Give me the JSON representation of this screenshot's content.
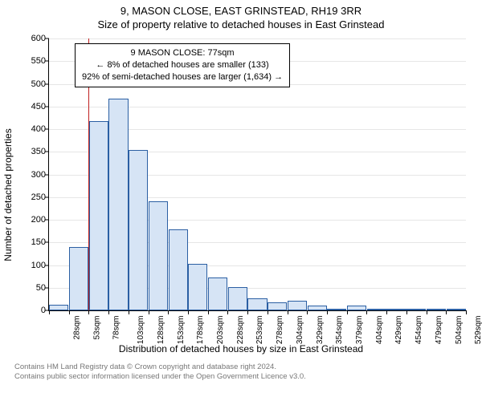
{
  "title_main": "9, MASON CLOSE, EAST GRINSTEAD, RH19 3RR",
  "title_sub": "Size of property relative to detached houses in East Grinstead",
  "chart": {
    "type": "histogram",
    "ylabel": "Number of detached properties",
    "xlabel": "Distribution of detached houses by size in East Grinstead",
    "ylim_max": 600,
    "ytick_step": 50,
    "bar_fill": "#d6e4f5",
    "bar_border": "#2b5fa3",
    "grid_color": "#e6e6e6",
    "background_color": "#ffffff",
    "marker_color": "#c02020",
    "x_labels": [
      "28sqm",
      "53sqm",
      "78sqm",
      "103sqm",
      "128sqm",
      "153sqm",
      "178sqm",
      "203sqm",
      "228sqm",
      "253sqm",
      "278sqm",
      "304sqm",
      "329sqm",
      "354sqm",
      "379sqm",
      "404sqm",
      "429sqm",
      "454sqm",
      "479sqm",
      "504sqm",
      "529sqm"
    ],
    "values": [
      12,
      140,
      417,
      467,
      354,
      240,
      178,
      102,
      72,
      52,
      26,
      18,
      22,
      10,
      4,
      10,
      4,
      4,
      4,
      4,
      4
    ],
    "marker_bin_index": 2,
    "marker_fraction_into_bin": 0.0
  },
  "annotation": {
    "line1": "9 MASON CLOSE: 77sqm",
    "line2": "← 8% of detached houses are smaller (133)",
    "line3": "92% of semi-detached houses are larger (1,634) →",
    "fontsize": 11
  },
  "footnote": {
    "line1": "Contains HM Land Registry data © Crown copyright and database right 2024.",
    "line2": "Contains public sector information licensed under the Open Government Licence v3.0.",
    "color": "#777777"
  }
}
